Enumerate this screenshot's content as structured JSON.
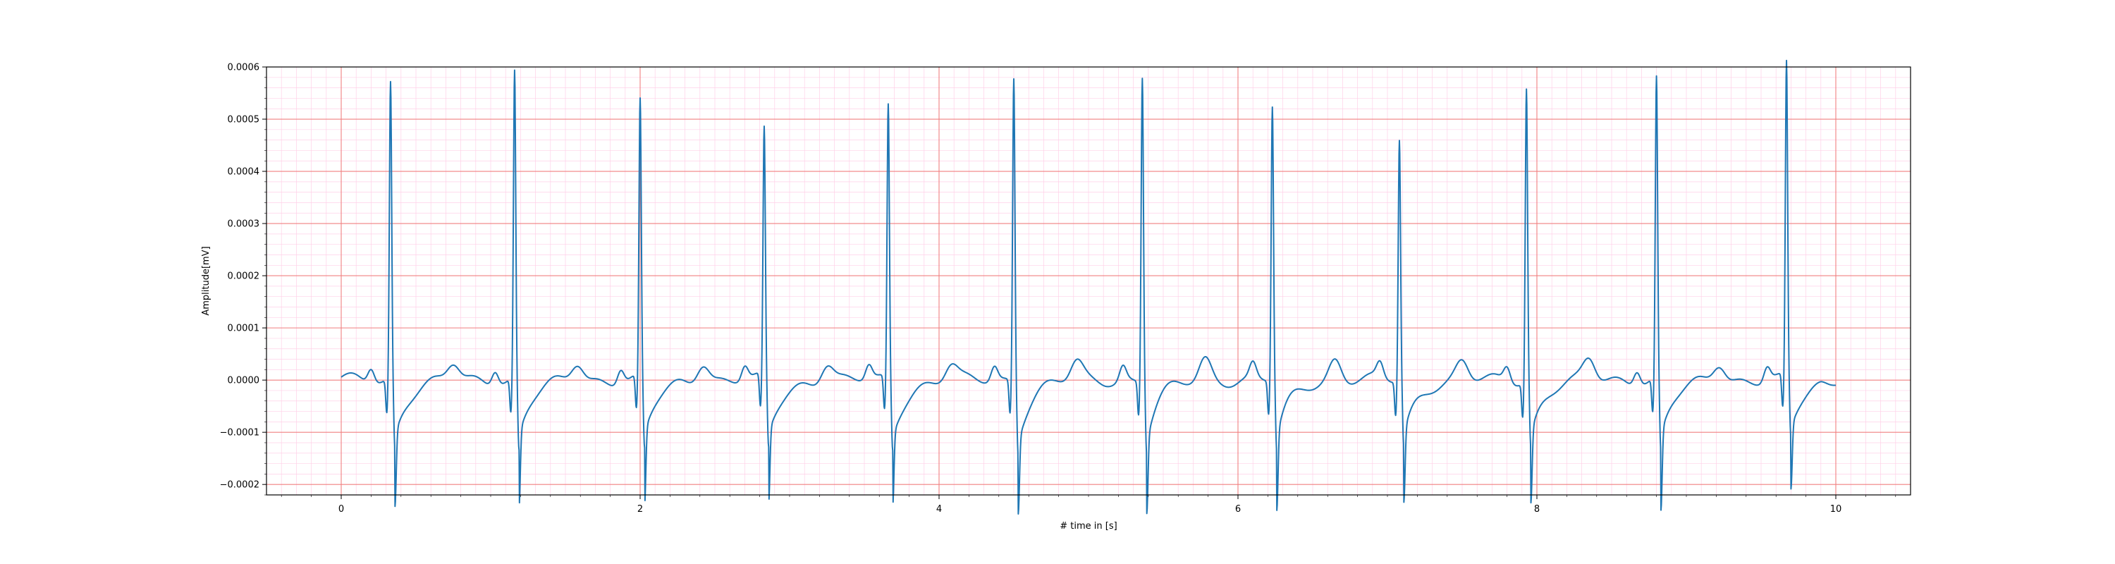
{
  "chart_data": {
    "type": "line",
    "title": "",
    "xlabel": "# time in [s]",
    "ylabel": "Amplitude[mV]",
    "xlim": [
      -0.5,
      10.5
    ],
    "ylim": [
      -0.00022,
      0.0006
    ],
    "x_ticks": [
      0,
      2,
      4,
      6,
      8,
      10
    ],
    "x_tick_labels": [
      "0",
      "2",
      "4",
      "6",
      "8",
      "10"
    ],
    "y_ticks": [
      -0.0002,
      -0.0001,
      0.0,
      0.0001,
      0.0002,
      0.0003,
      0.0004,
      0.0005,
      0.0006
    ],
    "y_tick_labels": [
      "−0.0002",
      "−0.0001",
      "0.0000",
      "0.0001",
      "0.0002",
      "0.0003",
      "0.0004",
      "0.0005",
      "0.0006"
    ],
    "grid": true,
    "major_grid_color": "#f08080",
    "minor_grid_color": "#ffd0e8",
    "series": [
      {
        "color": "#1f77b4",
        "beats": [
          {
            "t": 0.33,
            "r": 0.00053,
            "s": -0.000175,
            "t_wave": 2.2e-05
          },
          {
            "t": 1.16,
            "r": 0.00055,
            "s": -0.000178,
            "t_wave": 2.5e-05
          },
          {
            "t": 2.0,
            "r": 0.00049,
            "s": -0.000178,
            "t_wave": 2.8e-05
          },
          {
            "t": 2.83,
            "r": 0.000435,
            "s": -0.000175,
            "t_wave": 2.5e-05
          },
          {
            "t": 3.66,
            "r": 0.000485,
            "s": -0.000173,
            "t_wave": 2e-05
          },
          {
            "t": 4.5,
            "r": 0.000542,
            "s": -0.000177,
            "t_wave": 2.5e-05
          },
          {
            "t": 5.36,
            "r": 0.000545,
            "s": -0.000178,
            "t_wave": 3.2e-05
          },
          {
            "t": 6.23,
            "r": 0.000485,
            "s": -0.00018,
            "t_wave": 3e-05
          },
          {
            "t": 7.08,
            "r": 0.000422,
            "s": -0.00017,
            "t_wave": 2.5e-05
          },
          {
            "t": 7.93,
            "r": 0.000522,
            "s": -0.00017,
            "t_wave": 3e-05
          },
          {
            "t": 8.8,
            "r": 0.000537,
            "s": -0.000183,
            "t_wave": 2.5e-05
          },
          {
            "t": 9.67,
            "r": 0.000562,
            "s": -0.000157,
            "t_wave": 4e-05
          }
        ],
        "x_end": 10.0,
        "y_end": -1e-05
      }
    ]
  }
}
